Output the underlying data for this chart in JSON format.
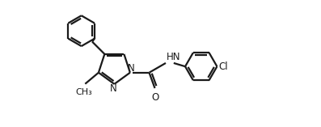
{
  "bg_color": "#ffffff",
  "line_color": "#1a1a1a",
  "line_width": 1.6,
  "font_size": 8.5,
  "figsize": [
    3.97,
    1.57
  ],
  "dpi": 100,
  "xlim": [
    0,
    10
  ],
  "ylim": [
    0,
    3.95
  ]
}
